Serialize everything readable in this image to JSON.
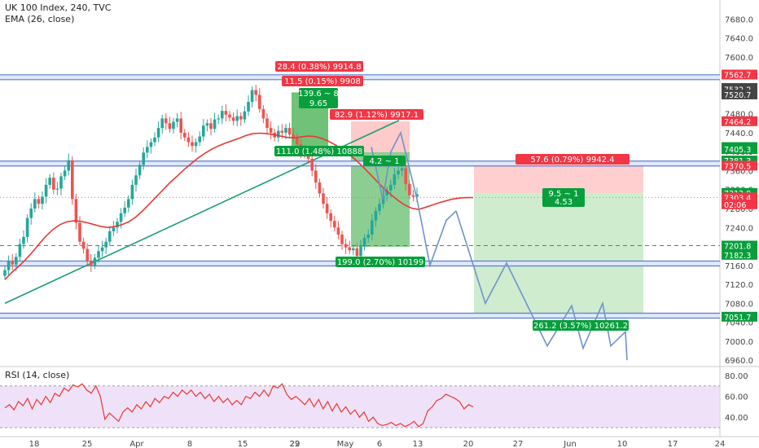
{
  "header": {
    "symbol_line": "UK 100 Index, 240, TVC",
    "ema_label": "EMA (26, close)",
    "rsi_label": "RSI (14, close)"
  },
  "colors": {
    "up_candle": "#26a69a",
    "down_candle": "#ef5350",
    "ema": "#e53935",
    "trend": "#1b9e6e",
    "blue_line": "#5b7fc9",
    "projection": "#6e93c9",
    "green_zone": "#3fae49",
    "red_zone": "#ff9e9e",
    "label_red": "#f23645",
    "label_green": "#089e3c",
    "rsi_line": "#e53935",
    "rsi_band": "#e8d6f5"
  },
  "chart_data": {
    "type": "candlestick",
    "title": "UK 100 Index, 240, TVC",
    "price_axis": {
      "ylim": [
        6950,
        7720
      ],
      "ticks": [
        "7680.0",
        "7640.0",
        "7600.0",
        "7560.0",
        "7520.0",
        "7480.0",
        "7440.0",
        "7400.0",
        "7360.0",
        "7320.0",
        "7280.0",
        "7240.0",
        "7200.0",
        "7160.0",
        "7120.0",
        "7080.0",
        "7040.0",
        "7000.0",
        "6960.0"
      ],
      "markers": [
        {
          "text": "7562.7",
          "value": 7562.7,
          "color": "#f23645"
        },
        {
          "text": "7534.3",
          "value": 7534.3,
          "color": "#444444"
        },
        {
          "text": "7532.2",
          "value": 7532.2,
          "color": "#444444"
        },
        {
          "text": "7520.7",
          "value": 7520.7,
          "color": "#444444"
        },
        {
          "text": "7464.2",
          "value": 7464.2,
          "color": "#f23645"
        },
        {
          "text": "7409.7",
          "value": 7409.7,
          "color": "#089e3c"
        },
        {
          "text": "7405.3",
          "value": 7405.3,
          "color": "#089e3c"
        },
        {
          "text": "7381.3",
          "value": 7381.3,
          "color": "#089e3c"
        },
        {
          "text": "7370.5",
          "value": 7370.5,
          "color": "#f23645"
        },
        {
          "text": "7312.9",
          "value": 7312.9,
          "color": "#089e3c"
        },
        {
          "text": "7303.4",
          "value": 7303.4,
          "color": "#f23645"
        },
        {
          "text": "02:06",
          "value": 7289,
          "color": "#f23645"
        },
        {
          "text": "7201.8",
          "value": 7201.8,
          "color": "#089e3c"
        },
        {
          "text": "7182.3",
          "value": 7182.3,
          "color": "#089e3c"
        },
        {
          "text": "7051.7",
          "value": 7051.7,
          "color": "#089e3c"
        }
      ]
    },
    "time_axis": {
      "labels": [
        "18",
        "25",
        "Apr",
        "8",
        "15",
        "22",
        "29",
        "May",
        "6",
        "13",
        "20",
        "27",
        "Jun",
        "10",
        "17",
        "24"
      ]
    },
    "levels": [
      {
        "name": "resistance-top",
        "value": 7557
      },
      {
        "name": "resistance-mid",
        "value": 7375
      },
      {
        "name": "support-mid",
        "value": 7164
      },
      {
        "name": "support-low",
        "value": 7054
      }
    ],
    "dashed_level": 7201.8,
    "dotted_level": 7303.4,
    "candles_close": [
      7150,
      7170,
      7162,
      7178,
      7205,
      7220,
      7260,
      7280,
      7300,
      7290,
      7305,
      7330,
      7345,
      7320,
      7322,
      7348,
      7360,
      7382,
      7300,
      7250,
      7210,
      7195,
      7170,
      7160,
      7176,
      7190,
      7198,
      7210,
      7232,
      7240,
      7252,
      7270,
      7282,
      7300,
      7330,
      7350,
      7372,
      7398,
      7410,
      7420,
      7430,
      7450,
      7470,
      7460,
      7448,
      7463,
      7470,
      7440,
      7430,
      7420,
      7412,
      7420,
      7432,
      7455,
      7460,
      7448,
      7468,
      7470,
      7486,
      7478,
      7472,
      7465,
      7475,
      7468,
      7485,
      7505,
      7530,
      7520,
      7490,
      7470,
      7450,
      7440,
      7430,
      7444,
      7440,
      7450,
      7436,
      7430,
      7416,
      7400,
      7394,
      7385,
      7360,
      7335,
      7312,
      7290,
      7270,
      7254,
      7240,
      7225,
      7205,
      7198,
      7192,
      7196,
      7180,
      7200,
      7218,
      7225,
      7255,
      7275,
      7290,
      7308,
      7318,
      7330,
      7352,
      7360,
      7365,
      7332,
      7308,
      7305,
      7310
    ],
    "ema": [
      7130,
      7145,
      7158,
      7172,
      7188,
      7206,
      7222,
      7236,
      7246,
      7252,
      7254,
      7253,
      7250,
      7246,
      7242,
      7240,
      7242,
      7246,
      7252,
      7262,
      7275,
      7290,
      7305,
      7320,
      7335,
      7348,
      7362,
      7374,
      7386,
      7396,
      7405,
      7412,
      7418,
      7423,
      7428,
      7434,
      7438,
      7439,
      7438,
      7436,
      7433,
      7430,
      7429,
      7431,
      7433,
      7432,
      7428,
      7422,
      7414,
      7405,
      7394,
      7382,
      7368,
      7353,
      7338,
      7323,
      7310,
      7298,
      7288,
      7281,
      7278,
      7282,
      7287,
      7292,
      7296,
      7300,
      7302,
      7303,
      7303
    ],
    "ema_start_index": 0,
    "trendline": {
      "from": [
        0,
        7080
      ],
      "to": [
        82,
        7466
      ]
    },
    "long_setup": {
      "top": 7525,
      "bottom": 7399,
      "label1": "139.6 ~ 8",
      "label2": "9.65"
    },
    "short_setup_1": {
      "entry": 7399,
      "stop": 7464,
      "target": 7199,
      "label_top": "82.9 (1.12%) 9917.1",
      "label_bottom": "199.0 (2.70%) 10199",
      "label_ratio": "4.2 ~ 1"
    },
    "short_setup_2": {
      "entry": 7313,
      "stop": 7371,
      "target": 7052,
      "label_top": "57.6 (0.79%) 9942.4",
      "label_bottom": "261.2 (3.57%) 10261.2",
      "label_ratio_1": "9.5 ~ 1",
      "label_ratio_2": "4.53"
    },
    "top_labels": [
      "28.4 (0.38%) 9914.8",
      "11.5 (0.15%) 9908"
    ],
    "long_bottom_label": "111.0 (1.48%) 10888",
    "projection_path_1": [
      [
        456,
        7410
      ],
      [
        470,
        7300
      ],
      [
        480,
        7400
      ],
      [
        492,
        7440
      ],
      [
        512,
        7300
      ],
      [
        528,
        7160
      ],
      [
        548,
        7255
      ],
      [
        560,
        7275
      ]
    ],
    "projection_path_2": [
      [
        560,
        7275
      ],
      [
        596,
        7080
      ],
      [
        622,
        7165
      ],
      [
        672,
        6990
      ],
      [
        702,
        7075
      ],
      [
        716,
        6985
      ],
      [
        740,
        7080
      ],
      [
        750,
        6990
      ],
      [
        768,
        7020
      ],
      [
        770,
        6960
      ]
    ],
    "rsi": {
      "ylim": [
        30,
        80
      ],
      "ticks": [
        "80.00",
        "60.00",
        "40.00"
      ],
      "band": [
        30,
        70
      ],
      "values": [
        49,
        52,
        47,
        55,
        51,
        58,
        48,
        57,
        52,
        60,
        54,
        63,
        60,
        68,
        65,
        71,
        69,
        72,
        66,
        63,
        70,
        60,
        38,
        44,
        40,
        36,
        45,
        49,
        45,
        52,
        48,
        55,
        50,
        58,
        54,
        60,
        58,
        64,
        60,
        66,
        62,
        66,
        60,
        64,
        58,
        62,
        55,
        60,
        54,
        58,
        52,
        56,
        52,
        60,
        58,
        64,
        60,
        66,
        60,
        70,
        68,
        72,
        62,
        57,
        60,
        56,
        52,
        58,
        50,
        57,
        48,
        55,
        46,
        53,
        45,
        50,
        43,
        47,
        40,
        45,
        36,
        40,
        34,
        32,
        33,
        35,
        32,
        34,
        31,
        33,
        36,
        31,
        34,
        46,
        50,
        56,
        58,
        62,
        60,
        58,
        55,
        48,
        52,
        50
      ]
    }
  }
}
